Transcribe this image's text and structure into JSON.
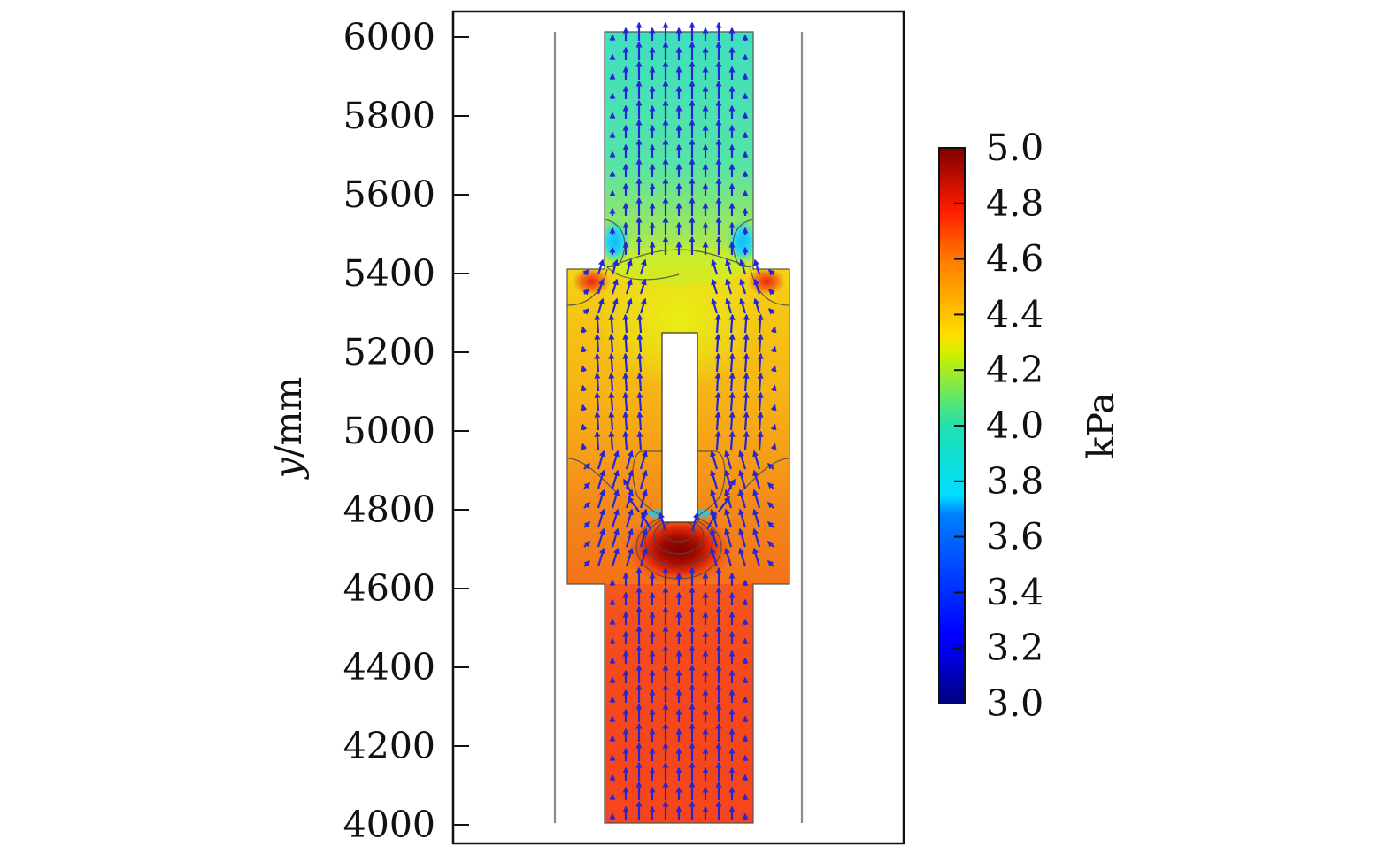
{
  "chart_data": {
    "type": "heatmap",
    "title": "",
    "xlabel": "",
    "ylabel": {
      "symbol": "y",
      "unit": "/mm"
    },
    "ylim": [
      4000,
      6000
    ],
    "yticks": [
      "4000",
      "4200",
      "4400",
      "4600",
      "4800",
      "5000",
      "5200",
      "5400",
      "5600",
      "5800",
      "6000"
    ],
    "colorbar": {
      "label": "kPa",
      "range": [
        3.0,
        5.0
      ],
      "ticks": [
        "3.0",
        "3.2",
        "3.4",
        "3.6",
        "3.8",
        "4.0",
        "4.2",
        "4.4",
        "4.6",
        "4.8",
        "5.0"
      ],
      "colormap": "jet"
    },
    "field": "pressure",
    "overlay": "velocity vectors (blue arrows) and pressure contours",
    "regions": [
      {
        "name": "lower channel",
        "y_range": [
          4000,
          4610
        ],
        "pressure_kpa": 4.7
      },
      {
        "name": "expansion chamber",
        "y_range": [
          4610,
          5415
        ],
        "pressure_kpa": 4.45
      },
      {
        "name": "obstacle",
        "y_range": [
          4770,
          5250
        ]
      },
      {
        "name": "high-pressure zone below obstacle",
        "y_center": 4700,
        "pressure_kpa": 5.0
      },
      {
        "name": "upper channel",
        "y_range": [
          5415,
          6010
        ],
        "pressure_kpa": 3.85
      }
    ]
  }
}
